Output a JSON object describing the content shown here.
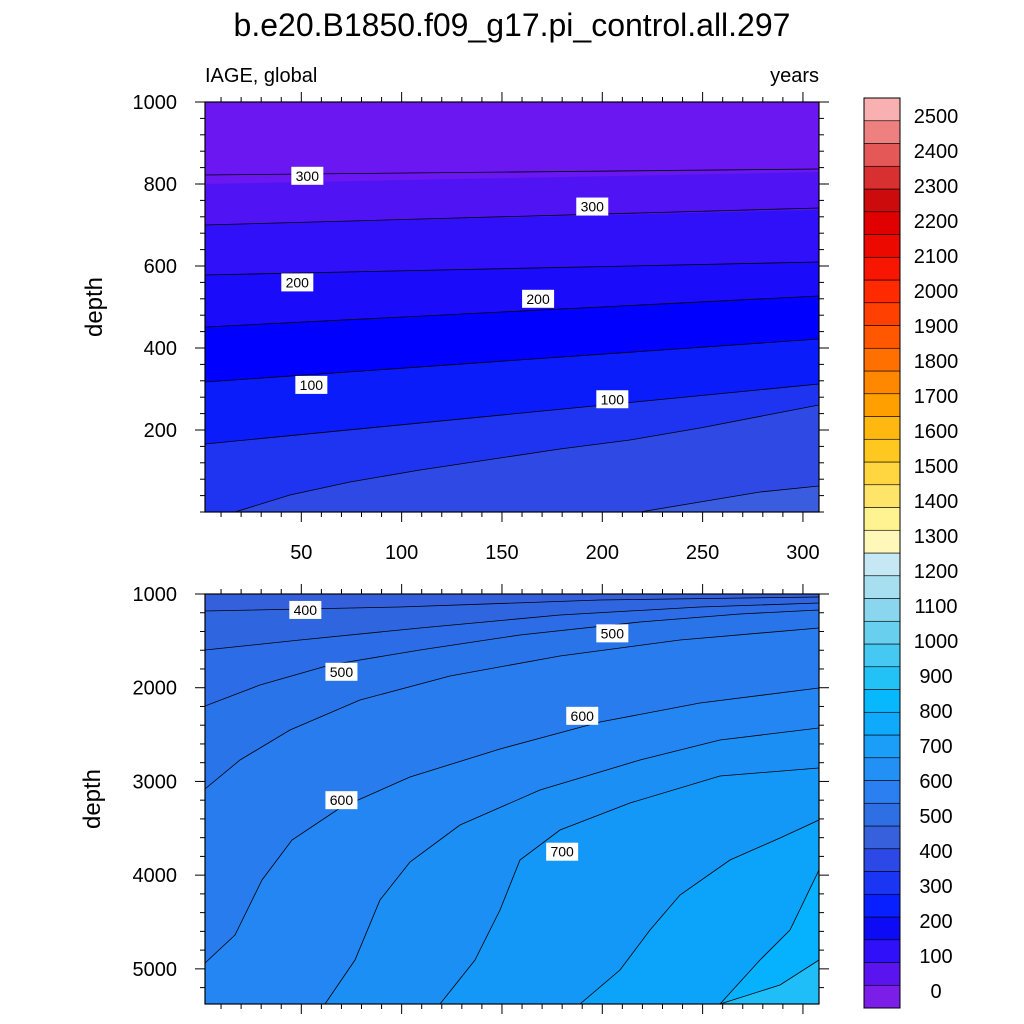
{
  "chart_data": {
    "type": "contour",
    "title": "b.e20.B1850.f09_g17.pi_control.all.297",
    "subtitle_left": "IAGE, global",
    "subtitle_right": "years",
    "ylabel": "depth",
    "x_ticks": [
      50,
      100,
      150,
      200,
      250,
      300
    ],
    "xlim": [
      2,
      308
    ],
    "contour_interval": 50,
    "colorbar": {
      "labels": [
        "0",
        "100",
        "200",
        "300",
        "400",
        "500",
        "600",
        "700",
        "800",
        "900",
        "1000",
        "1100",
        "1200",
        "1300",
        "1400",
        "1500",
        "1600",
        "1700",
        "1800",
        "1900",
        "2000",
        "2100",
        "2200",
        "2300",
        "2400",
        "2500"
      ],
      "colors": [
        "#7a1ee8",
        "#5a14f0",
        "#2f10f8",
        "#0d0af5",
        "#0820ff",
        "#1a36f4",
        "#2c48e6",
        "#3660dc",
        "#2f6fe4",
        "#2b7ff0",
        "#2290f5",
        "#1a9ef8",
        "#10aafc",
        "#08b8fd",
        "#22c2f6",
        "#45c8f2",
        "#68d0ee",
        "#8ad6ee",
        "#a8dff0",
        "#c6e8f4",
        "#fff8b8",
        "#fff290",
        "#ffe46a",
        "#ffd640",
        "#ffc820",
        "#ffb810",
        "#ffa000",
        "#ff8800",
        "#ff7000",
        "#ff5800",
        "#ff4000",
        "#ff2a00",
        "#f81600",
        "#ec0a00",
        "#e00000",
        "#cc0c0c",
        "#d83030",
        "#e45858",
        "#ee8080",
        "#f8b0b0"
      ]
    },
    "panels": [
      {
        "name": "upper",
        "ylim": [
          1000,
          0
        ],
        "y_ticks": [
          200,
          400,
          600,
          800,
          1000
        ],
        "contours": [
          {
            "level": 50,
            "y_at_x": [
              [
                2,
                180
              ],
              [
                308,
                170
              ]
            ]
          },
          {
            "level": 100,
            "y_at_x": [
              [
                2,
                300
              ],
              [
                308,
                263
              ]
            ]
          },
          {
            "level": 150,
            "y_at_x": [
              [
                2,
                425
              ],
              [
                308,
                365
              ]
            ]
          },
          {
            "level": 200,
            "y_at_x": [
              [
                2,
                555
              ],
              [
                308,
                475
              ]
            ]
          },
          {
            "level": 250,
            "y_at_x": [
              [
                2,
                690
              ],
              [
                308,
                580
              ]
            ]
          },
          {
            "level": 300,
            "y_at_x": [
              [
                2,
                845
              ],
              [
                308,
                690
              ]
            ]
          },
          {
            "level": 350,
            "y_at_x": [
              [
                15,
                1000
              ],
              [
                308,
                805
              ]
            ]
          },
          {
            "level": 400,
            "y_at_x": [
              [
                220,
                1000
              ],
              [
                308,
                935
              ]
            ]
          }
        ],
        "labels": [
          {
            "text": "100",
            "x": 55,
            "y": 310
          },
          {
            "text": "100",
            "x": 205,
            "y": 275
          },
          {
            "text": "200",
            "x": 48,
            "y": 560
          },
          {
            "text": "200",
            "x": 168,
            "y": 520
          },
          {
            "text": "300",
            "x": 53,
            "y": 820
          },
          {
            "text": "300",
            "x": 195,
            "y": 745
          }
        ]
      },
      {
        "name": "lower",
        "ylim": [
          1000,
          5375
        ],
        "y_ticks": [
          1000,
          2000,
          3000,
          4000,
          5000
        ],
        "labels": [
          {
            "text": "400",
            "x": 52,
            "y": 1170
          },
          {
            "text": "500",
            "x": 70,
            "y": 1830
          },
          {
            "text": "500",
            "x": 205,
            "y": 1420
          },
          {
            "text": "600",
            "x": 190,
            "y": 2300
          },
          {
            "text": "600",
            "x": 70,
            "y": 3200
          },
          {
            "text": "700",
            "x": 180,
            "y": 3750
          }
        ]
      }
    ]
  }
}
